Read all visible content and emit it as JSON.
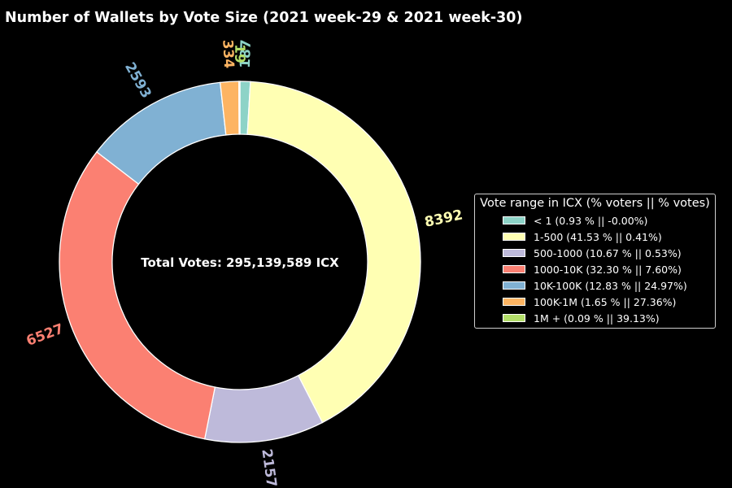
{
  "chart_data": {
    "type": "pie",
    "title": "Number of Wallets by Vote Size (2021 week-29 & 2021 week-30)",
    "center_text": "Total Votes: 295,139,589 ICX",
    "legend_title": "Vote range in ICX (% voters || % votes)",
    "legend_position": "center-right",
    "slices": [
      {
        "category": "< 1",
        "value": 187,
        "value_label": "187",
        "legend": "< 1 (0.93 % || -0.00%)",
        "color": "#8dd3c7"
      },
      {
        "category": "1-500",
        "value": 8392,
        "value_label": "8392",
        "legend": "1-500 (41.53 % || 0.41%)",
        "color": "#ffffb3"
      },
      {
        "category": "500-1000",
        "value": 2157,
        "value_label": "2157",
        "legend": "500-1000 (10.67 % || 0.53%)",
        "color": "#bebada"
      },
      {
        "category": "1000-10K",
        "value": 6527,
        "value_label": "6527",
        "legend": "1000-10K (32.30 % || 7.60%)",
        "color": "#fb8072"
      },
      {
        "category": "10K-100K",
        "value": 2593,
        "value_label": "2593",
        "legend": "10K-100K (12.83 % || 24.97%)",
        "color": "#80b1d3"
      },
      {
        "category": "100K-1M",
        "value": 334,
        "value_label": "334",
        "legend": "100K-1M (1.65 % || 27.36%)",
        "color": "#fdb462"
      },
      {
        "category": "1M +",
        "value": 19,
        "value_label": "19",
        "legend": "1M + (0.09 % || 39.13%)",
        "color": "#b3de69"
      }
    ]
  }
}
